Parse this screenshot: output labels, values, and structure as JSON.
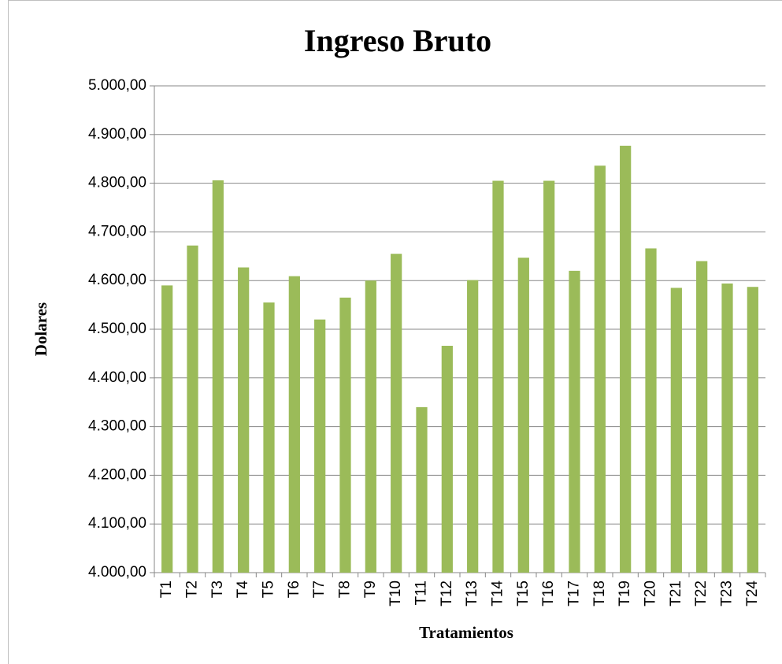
{
  "chart_data": {
    "type": "bar",
    "title": "Ingreso Bruto",
    "x_label": "Tratamientos",
    "y_label": "Dolares",
    "categories": [
      "T1",
      "T2",
      "T3",
      "T4",
      "T5",
      "T6",
      "T7",
      "T8",
      "T9",
      "T10",
      "T11",
      "T12",
      "T13",
      "T14",
      "T15",
      "T16",
      "T17",
      "T18",
      "T19",
      "T20",
      "T21",
      "T22",
      "T23",
      "T24"
    ],
    "values": [
      4590,
      4672,
      4806,
      4627,
      4555,
      4609,
      4520,
      4565,
      4600,
      4655,
      4340,
      4466,
      4601,
      4805,
      4647,
      4805,
      4620,
      4836,
      4877,
      4666,
      4585,
      4640,
      4594,
      4587
    ],
    "color": "#9bbb59",
    "ylim": [
      4000,
      5000
    ],
    "yticks": [
      {
        "value": 4000,
        "label": "4.000,00"
      },
      {
        "value": 4100,
        "label": "4.100,00"
      },
      {
        "value": 4200,
        "label": "4.200,00"
      },
      {
        "value": 4300,
        "label": "4.300,00"
      },
      {
        "value": 4400,
        "label": "4.400,00"
      },
      {
        "value": 4500,
        "label": "4.500,00"
      },
      {
        "value": 4600,
        "label": "4.600,00"
      },
      {
        "value": 4700,
        "label": "4.700,00"
      },
      {
        "value": 4800,
        "label": "4.800,00"
      },
      {
        "value": 4900,
        "label": "4.900,00"
      },
      {
        "value": 5000,
        "label": "5.000,00"
      }
    ],
    "grid": true
  }
}
